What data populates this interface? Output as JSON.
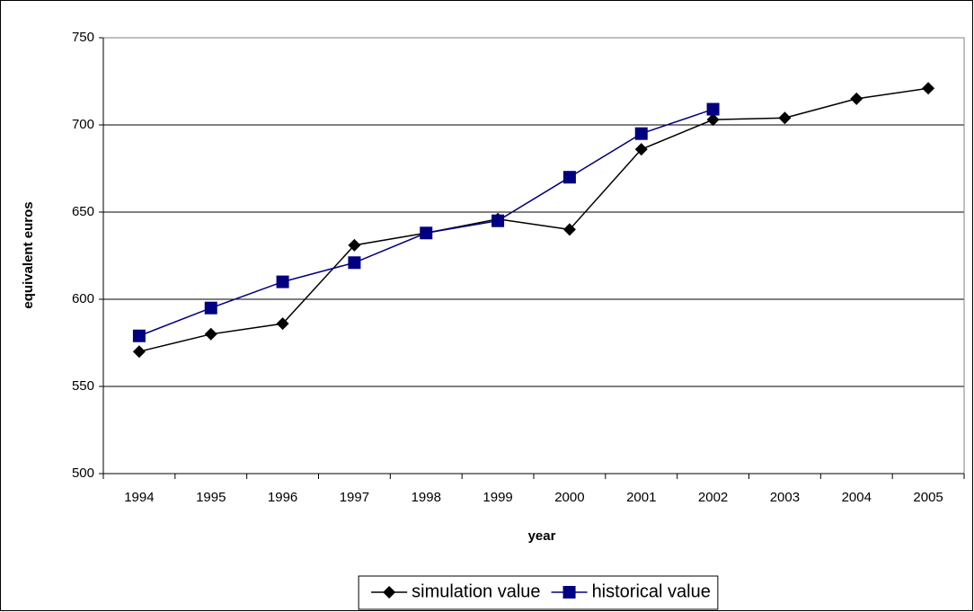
{
  "chart_data": {
    "type": "line",
    "x_label": "year",
    "y_label": "equivalent euros",
    "categories": [
      "1994",
      "1995",
      "1996",
      "1997",
      "1998",
      "1999",
      "2000",
      "2001",
      "2002",
      "2003",
      "2004",
      "2005"
    ],
    "series": [
      {
        "name": "simulation value",
        "color": "#000000",
        "marker": "diamond",
        "values": [
          570,
          580,
          586,
          631,
          638,
          646,
          640,
          686,
          703,
          704,
          715,
          721
        ]
      },
      {
        "name": "historical value",
        "color": "#000080",
        "marker": "square",
        "values": [
          579,
          595,
          610,
          621,
          638,
          645,
          670,
          695,
          709,
          null,
          null,
          null
        ]
      }
    ],
    "ylim": [
      500,
      750
    ],
    "yticks": [
      500,
      550,
      600,
      650,
      700,
      750
    ],
    "grid": true,
    "legend": "bottom"
  }
}
